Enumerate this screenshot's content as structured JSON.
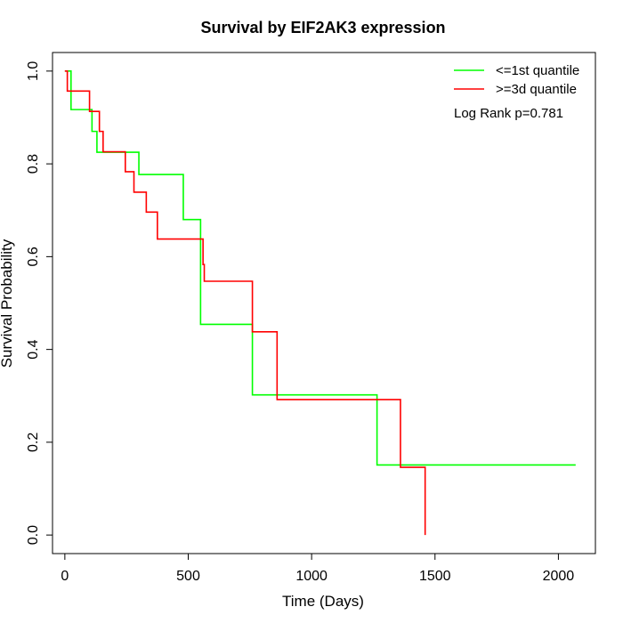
{
  "chart_data": {
    "type": "line",
    "title": "Survival by EIF2AK3 expression",
    "xlabel": "Time (Days)",
    "ylabel": "Survival Probability",
    "xlim": [
      -50,
      2150
    ],
    "ylim": [
      -0.04,
      1.04
    ],
    "x_ticks": [
      0,
      500,
      1000,
      1500,
      2000
    ],
    "y_ticks": [
      0.0,
      0.2,
      0.4,
      0.6,
      0.8,
      1.0
    ],
    "x_tick_labels": [
      "0",
      "500",
      "1000",
      "1500",
      "2000"
    ],
    "y_tick_labels": [
      "0.0",
      "0.2",
      "0.4",
      "0.6",
      "0.8",
      "1.0"
    ],
    "grid": false,
    "legend_position": "top-right",
    "annotation": "Log Rank p=0.781",
    "series": [
      {
        "name": "<=1st quantile",
        "color": "#00ff00",
        "x": [
          0,
          25,
          110,
          130,
          300,
          480,
          550,
          760,
          1265,
          2070
        ],
        "y": [
          1.0,
          0.917,
          0.87,
          0.825,
          0.777,
          0.68,
          0.454,
          0.302,
          0.151,
          0.151
        ]
      },
      {
        "name": ">=3d quantile",
        "color": "#ff0000",
        "x": [
          0,
          10,
          100,
          140,
          155,
          245,
          280,
          330,
          375,
          560,
          565,
          760,
          860,
          1360,
          1460,
          1460
        ],
        "y": [
          1.0,
          0.957,
          0.913,
          0.87,
          0.826,
          0.783,
          0.739,
          0.696,
          0.638,
          0.583,
          0.547,
          0.438,
          0.292,
          0.146,
          0.146,
          0.0
        ]
      }
    ]
  }
}
